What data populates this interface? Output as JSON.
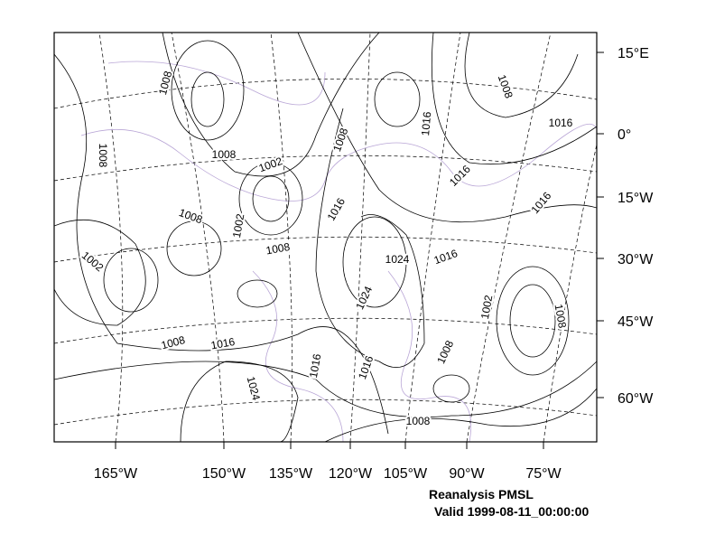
{
  "map": {
    "title": "Reanalysis PMSL",
    "subtitle": "Valid 1999-08-11_00:00:00",
    "lon_labels": [
      "165°W",
      "150°W",
      "135°W",
      "120°W",
      "105°W",
      "90°W",
      "75°W"
    ],
    "lat_labels": [
      "15°E",
      "0°",
      "15°W",
      "30°W",
      "45°W",
      "60°W"
    ],
    "contour_labels": [
      "1008",
      "1008",
      "1008",
      "1002",
      "1008",
      "1002",
      "1002",
      "1008",
      "1016",
      "1008",
      "1016",
      "1008",
      "1016",
      "1016",
      "1016",
      "1024",
      "1016",
      "1024",
      "1002",
      "1008",
      "1008",
      "1016",
      "1024",
      "1016",
      "1016",
      "1008",
      "1008"
    ]
  }
}
